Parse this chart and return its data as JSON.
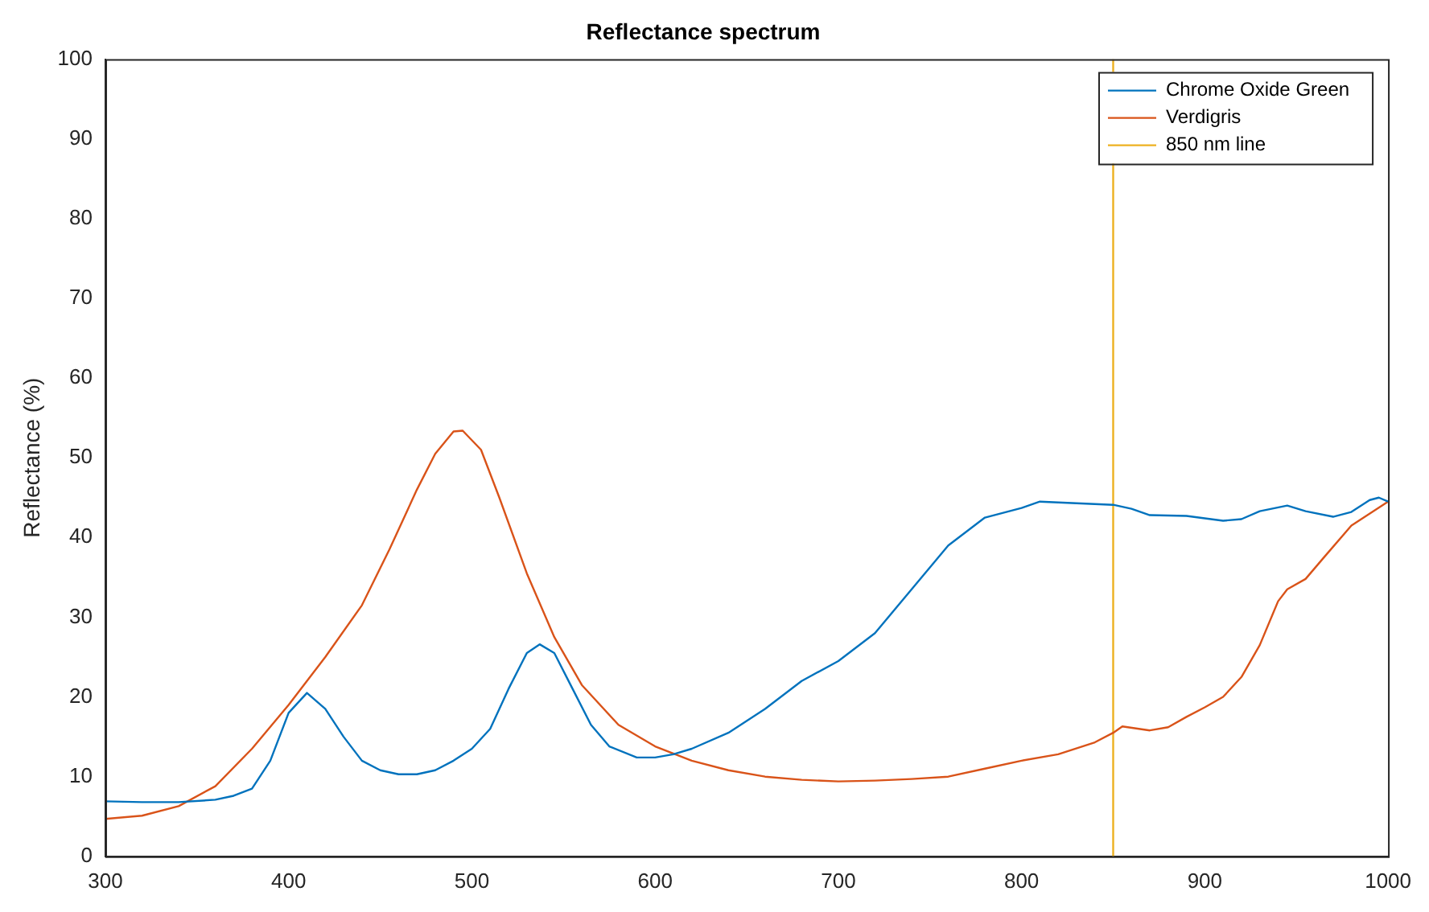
{
  "chart_data": {
    "type": "line",
    "title": "Reflectance spectrum",
    "ylabel": "Reflectance (%)",
    "xlim": [
      300,
      1000
    ],
    "xticks": [
      300,
      400,
      500,
      600,
      700,
      800,
      900,
      1000
    ],
    "ylim": [
      0,
      100
    ],
    "yticks": [
      0,
      10,
      20,
      30,
      40,
      50,
      60,
      70,
      80,
      90,
      100
    ],
    "grid": false,
    "legend": "top right",
    "marker": "none",
    "line_style": "solid",
    "series": [
      {
        "name": "Chrome Oxide Green",
        "color": "#0072bd",
        "x": [
          300,
          320,
          340,
          360,
          370,
          380,
          390,
          400,
          410,
          420,
          430,
          440,
          450,
          460,
          470,
          480,
          490,
          500,
          510,
          520,
          530,
          537,
          545,
          555,
          565,
          575,
          590,
          600,
          610,
          620,
          640,
          660,
          680,
          700,
          720,
          740,
          760,
          780,
          800,
          810,
          830,
          850,
          860,
          870,
          890,
          910,
          920,
          930,
          945,
          955,
          970,
          980,
          990,
          995,
          1000
        ],
        "values": [
          6.9,
          6.8,
          6.8,
          7.1,
          7.6,
          8.5,
          12,
          18,
          20.5,
          18.5,
          15,
          12,
          10.8,
          10.3,
          10.3,
          10.8,
          12,
          13.5,
          16,
          21,
          25.5,
          26.6,
          25.5,
          21,
          16.5,
          13.8,
          12.4,
          12.4,
          12.8,
          13.5,
          15.5,
          18.5,
          22,
          24.5,
          28,
          33.5,
          39,
          42.5,
          43.7,
          44.5,
          44.3,
          44.1,
          43.6,
          42.8,
          42.7,
          42.1,
          42.3,
          43.3,
          44,
          43.3,
          42.6,
          43.2,
          44.7,
          45,
          44.5
        ]
      },
      {
        "name": "Verdigris",
        "color": "#d95319",
        "x": [
          300,
          320,
          340,
          360,
          380,
          400,
          420,
          440,
          455,
          470,
          480,
          490,
          495,
          505,
          515,
          530,
          545,
          560,
          580,
          600,
          620,
          640,
          660,
          680,
          700,
          720,
          740,
          760,
          780,
          800,
          820,
          840,
          850,
          855,
          870,
          880,
          890,
          900,
          910,
          920,
          930,
          940,
          945,
          955,
          965,
          980,
          1000
        ],
        "values": [
          4.7,
          5.1,
          6.3,
          8.8,
          13.5,
          19,
          25,
          31.5,
          38.5,
          46,
          50.5,
          53.3,
          53.4,
          51,
          45,
          35.5,
          27.5,
          21.5,
          16.5,
          13.8,
          12,
          10.8,
          10,
          9.6,
          9.4,
          9.5,
          9.7,
          10,
          11,
          12,
          12.8,
          14.3,
          15.5,
          16.3,
          15.8,
          16.2,
          17.5,
          18.7,
          20,
          22.5,
          26.5,
          32,
          33.5,
          34.8,
          37.5,
          41.5,
          44.5
        ]
      },
      {
        "name": "850 nm line",
        "color": "#edb120",
        "x": [
          850,
          850
        ],
        "values": [
          0,
          100
        ]
      }
    ]
  }
}
